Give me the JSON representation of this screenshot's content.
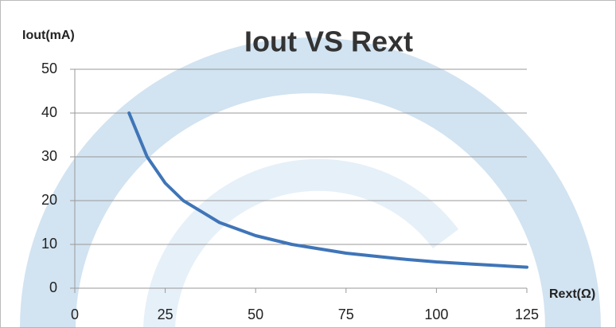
{
  "chart_data": {
    "type": "line",
    "title": "Iout VS Rext",
    "x_label": "Rext(Ω)",
    "y_label": "Iout(mA)",
    "x": [
      15,
      20,
      25,
      30,
      40,
      50,
      60,
      75,
      90,
      100,
      110,
      125
    ],
    "series": [
      {
        "name": "Iout",
        "color": "#3f75b8",
        "values": [
          40,
          30,
          24,
          20,
          15,
          12,
          10,
          8,
          6.7,
          6,
          5.5,
          4.8
        ]
      }
    ],
    "xlim": [
      0,
      125
    ],
    "xticks": [
      0,
      25,
      50,
      75,
      100,
      125
    ],
    "ylim": [
      0,
      50
    ],
    "yticks": [
      0,
      10,
      20,
      30,
      40,
      50
    ],
    "grid": true
  }
}
